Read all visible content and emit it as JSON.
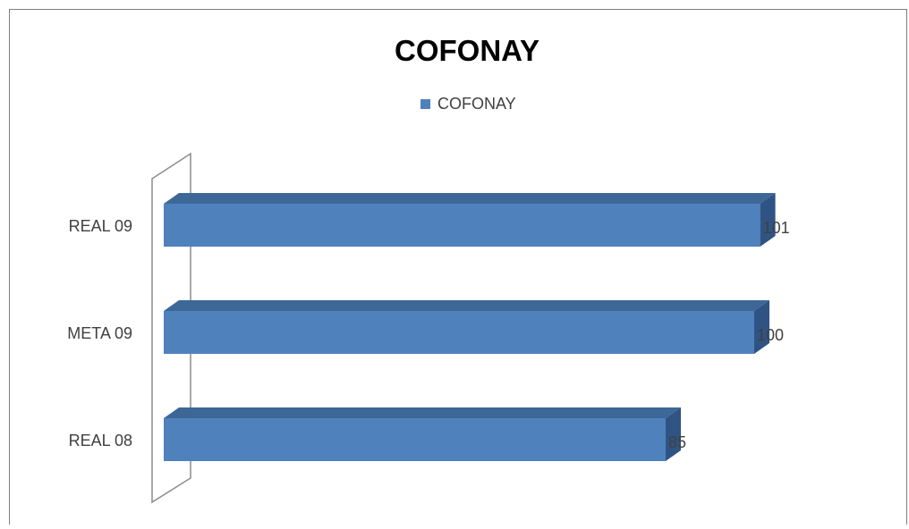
{
  "chart_data": {
    "type": "bar",
    "orientation": "horizontal",
    "title": "COFONAY",
    "categories": [
      "REAL 09",
      "META 09",
      "REAL 08"
    ],
    "series": [
      {
        "name": "COFONAY",
        "values": [
          101,
          100,
          85
        ]
      }
    ],
    "data_labels": [
      "101",
      "100",
      "85"
    ],
    "xlim": [
      0,
      101
    ],
    "grid": false,
    "legend": "top",
    "style": "3d",
    "colors": {
      "bar_front": "#4F81BD",
      "bar_top": "#3D6797",
      "bar_side": "#2F5484",
      "wall_stroke": "#8C8C8C",
      "border": "#7F7F7F"
    }
  }
}
